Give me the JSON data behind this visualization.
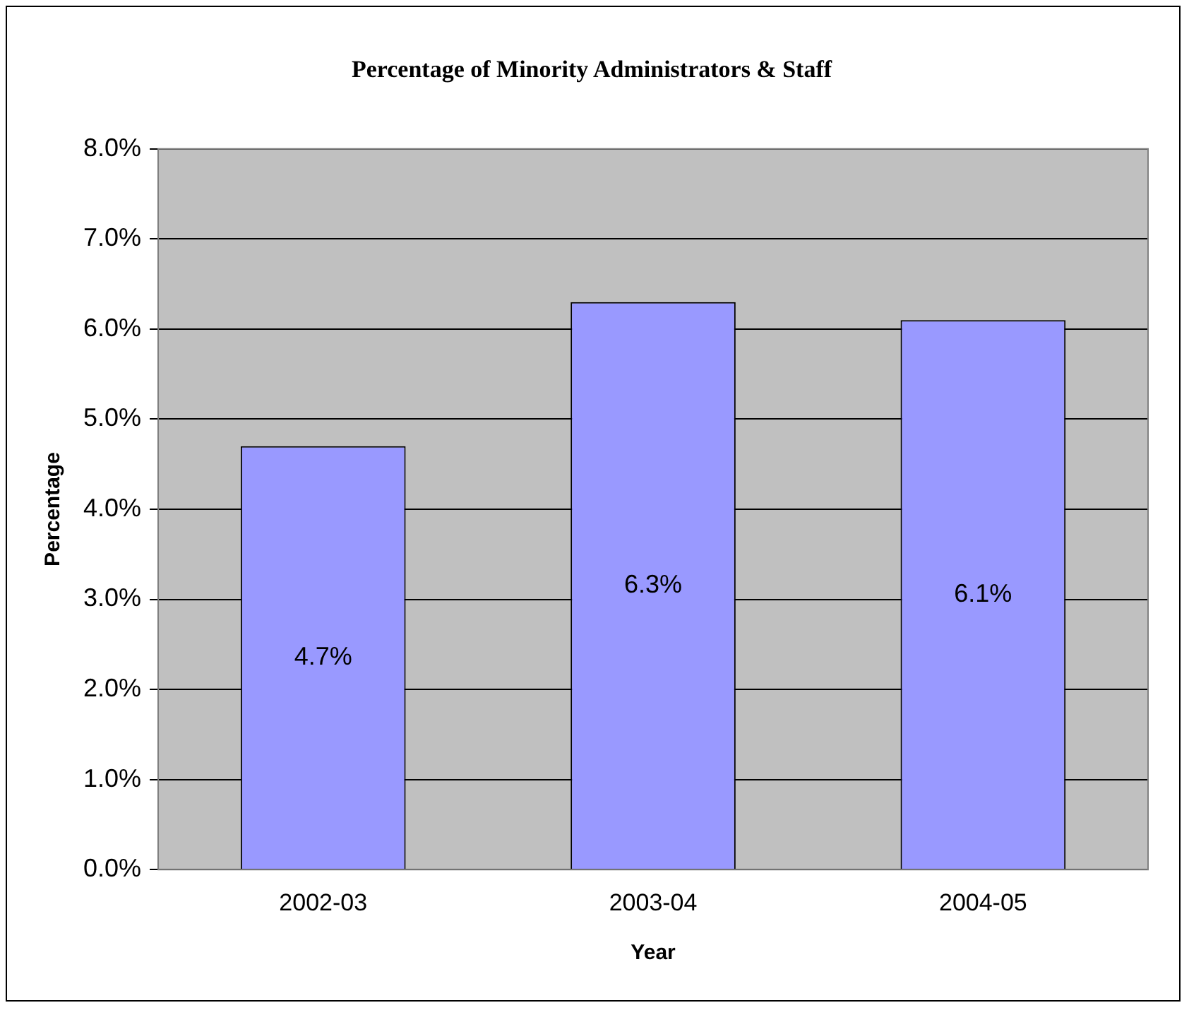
{
  "chart_data": {
    "type": "bar",
    "title": "Percentage of Minority Administrators & Staff",
    "xlabel": "Year",
    "ylabel": "Percentage",
    "categories": [
      "2002-03",
      "2003-04",
      "2004-05"
    ],
    "values": [
      4.7,
      6.3,
      6.1
    ],
    "color": "#9999ff",
    "value_labels": [
      "4.7%",
      "6.3%",
      "6.1%"
    ],
    "ylim": [
      0,
      8
    ],
    "yticks": [
      {
        "value": 0,
        "label": "0.0%"
      },
      {
        "value": 1,
        "label": "1.0%"
      },
      {
        "value": 2,
        "label": "2.0%"
      },
      {
        "value": 3,
        "label": "3.0%"
      },
      {
        "value": 4,
        "label": "4.0%"
      },
      {
        "value": 5,
        "label": "5.0%"
      },
      {
        "value": 6,
        "label": "6.0%"
      },
      {
        "value": 7,
        "label": "7.0%"
      },
      {
        "value": 8,
        "label": "8.0%"
      }
    ],
    "grid": "y",
    "legend": false
  }
}
